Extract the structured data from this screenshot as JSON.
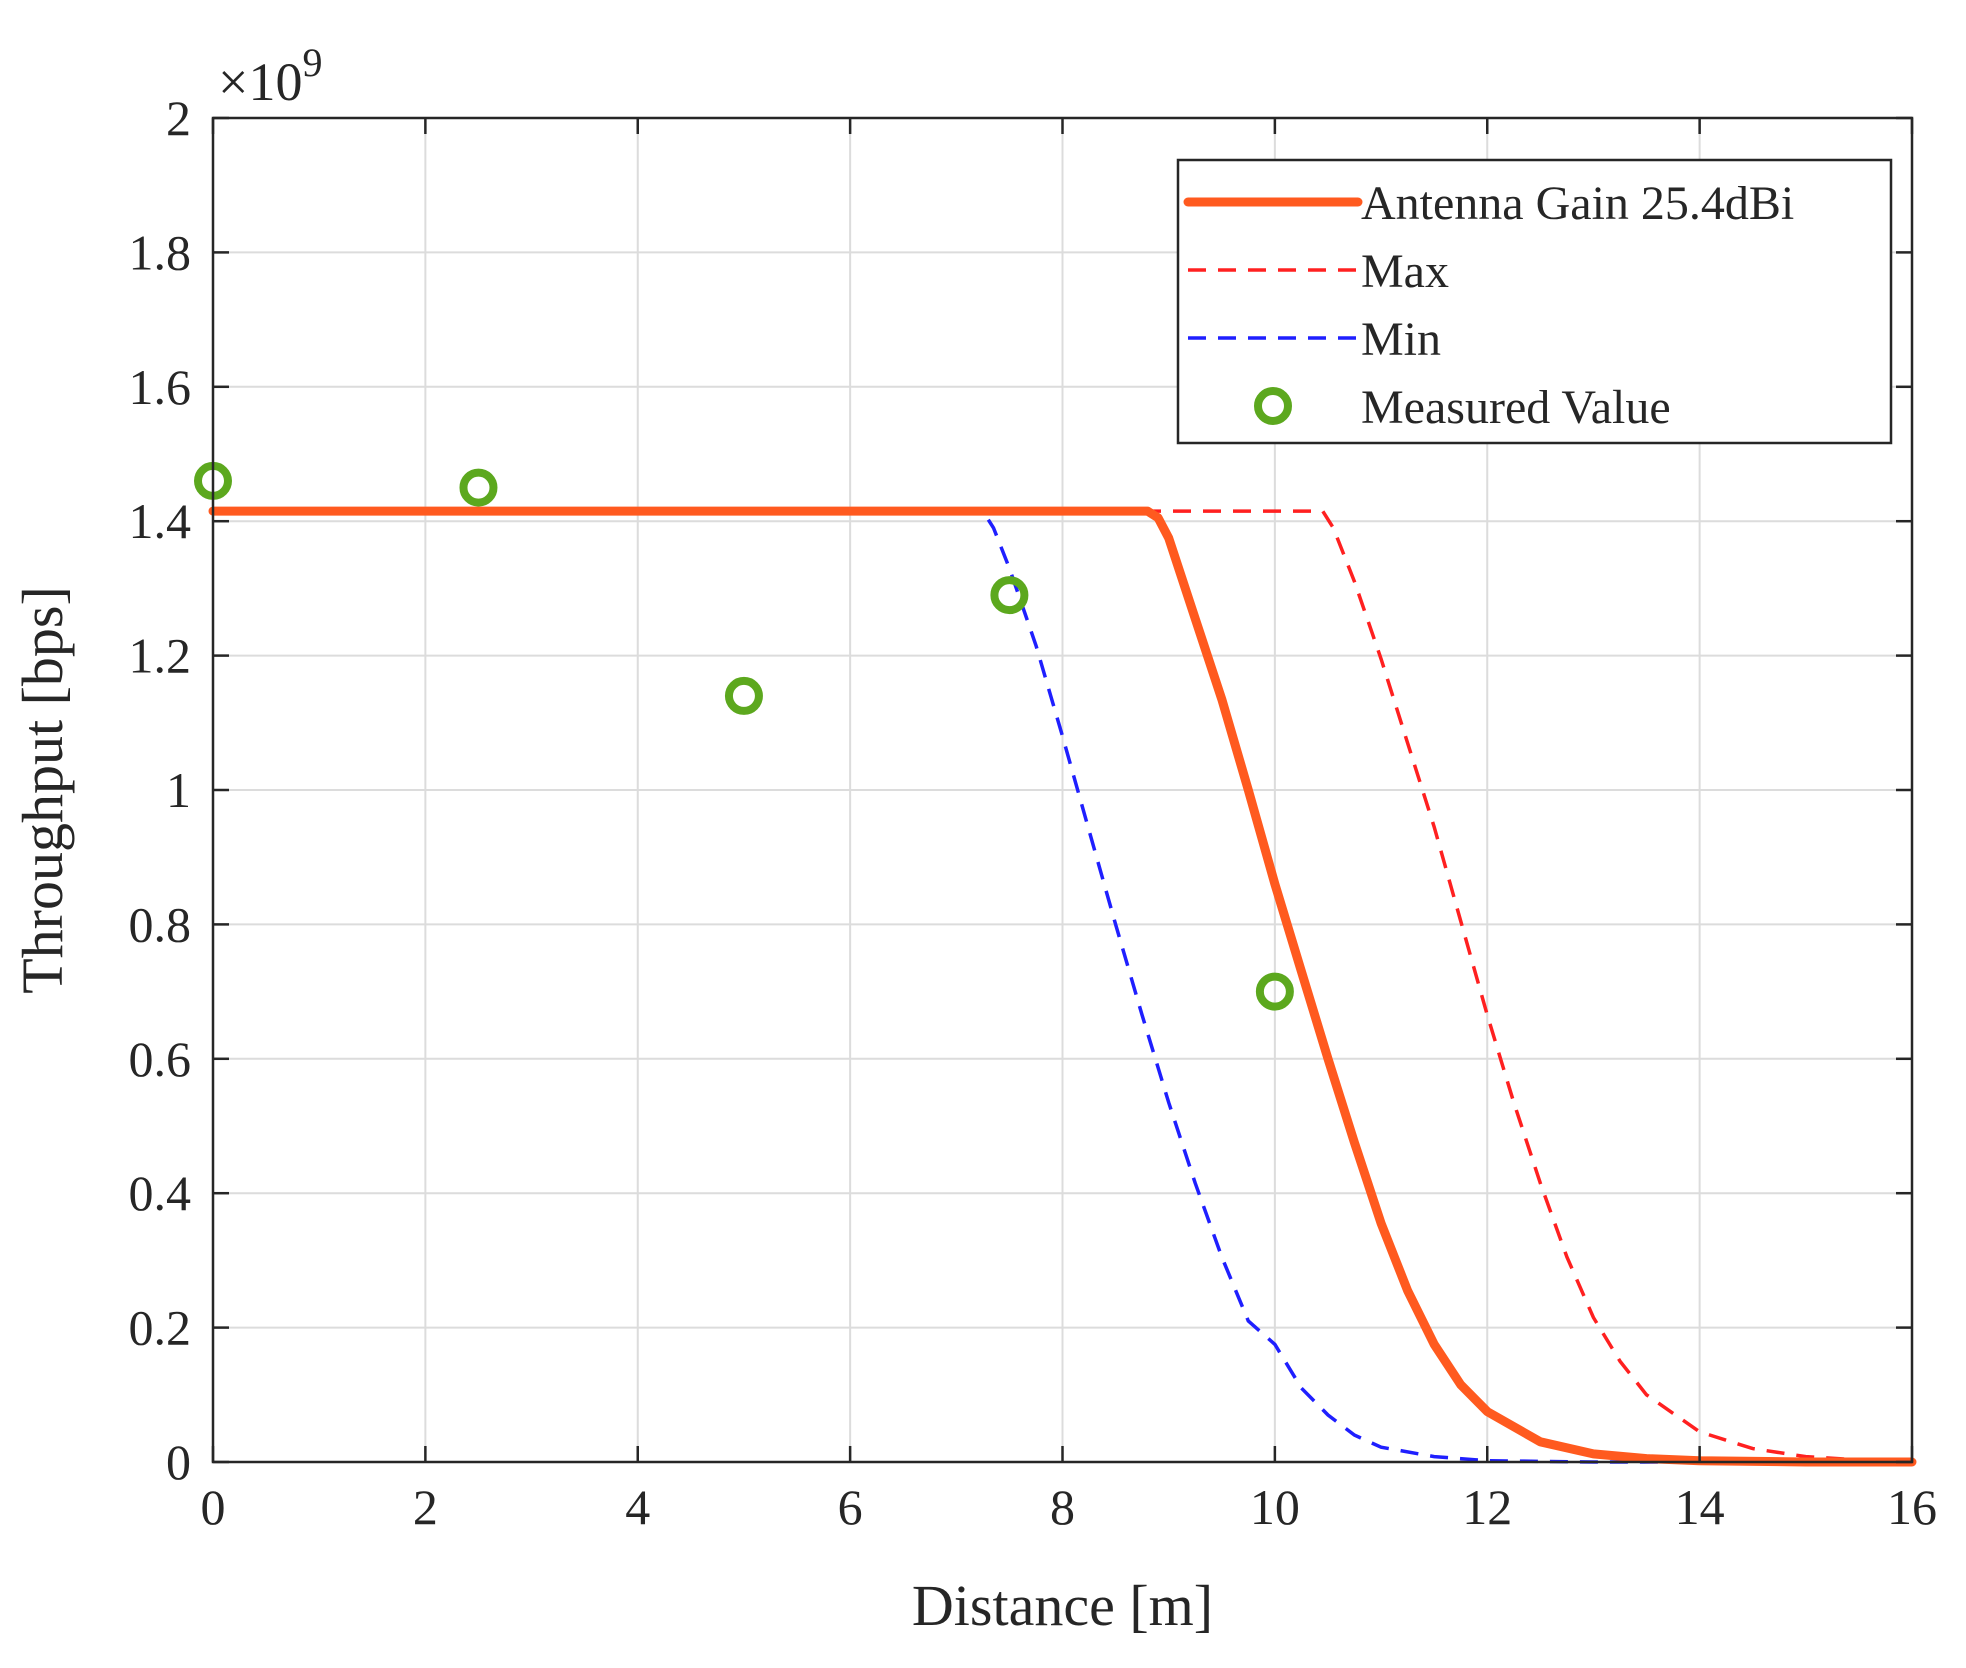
{
  "chart_data": {
    "type": "line",
    "title": "",
    "xlabel": "Distance [m]",
    "ylabel": "Throughput [bps]",
    "y_exponent_label": "×10",
    "y_exponent_power": "9",
    "xlim": [
      0,
      16
    ],
    "ylim": [
      0,
      2
    ],
    "x_ticks": [
      0,
      2,
      4,
      6,
      8,
      10,
      12,
      14,
      16
    ],
    "x_tick_labels": [
      "0",
      "2",
      "4",
      "6",
      "8",
      "10",
      "12",
      "14",
      "16"
    ],
    "y_ticks": [
      0,
      0.2,
      0.4,
      0.6,
      0.8,
      1.0,
      1.2,
      1.4,
      1.6,
      1.8,
      2.0
    ],
    "y_tick_labels": [
      "0",
      "0.2",
      "0.4",
      "0.6",
      "0.8",
      "1",
      "1.2",
      "1.4",
      "1.6",
      "1.8",
      "2"
    ],
    "grid": true,
    "legend_position": "top-right",
    "series": [
      {
        "name": "Antenna Gain 25.4dBi",
        "style": "solid",
        "color": "#ff5a1f",
        "x": [
          0,
          8.8,
          8.9,
          9.0,
          9.25,
          9.5,
          9.75,
          10.0,
          10.25,
          10.5,
          10.75,
          11.0,
          11.25,
          11.5,
          11.75,
          12.0,
          12.5,
          13.0,
          13.5,
          14.0,
          15.0,
          16.0
        ],
        "values": [
          1.415,
          1.415,
          1.405,
          1.375,
          1.255,
          1.135,
          1.0,
          0.86,
          0.73,
          0.6,
          0.475,
          0.355,
          0.255,
          0.175,
          0.115,
          0.075,
          0.03,
          0.012,
          0.005,
          0.002,
          0.0,
          0.0
        ]
      },
      {
        "name": "Max",
        "style": "dashed",
        "color": "#ff2020",
        "x": [
          0,
          10.45,
          10.55,
          10.75,
          11.0,
          11.25,
          11.5,
          11.75,
          12.0,
          12.25,
          12.5,
          12.75,
          13.0,
          13.25,
          13.5,
          14.0,
          14.5,
          15.0,
          15.5,
          16.0
        ],
        "values": [
          1.415,
          1.415,
          1.39,
          1.31,
          1.195,
          1.07,
          0.945,
          0.805,
          0.665,
          0.535,
          0.415,
          0.305,
          0.215,
          0.15,
          0.1,
          0.045,
          0.02,
          0.008,
          0.003,
          0.0
        ]
      },
      {
        "name": "Min",
        "style": "dashed",
        "color": "#1f1fff",
        "x": [
          0,
          7.25,
          7.35,
          7.5,
          7.75,
          8.0,
          8.25,
          8.5,
          8.75,
          9.0,
          9.25,
          9.5,
          9.75,
          10.0,
          10.25,
          10.5,
          10.75,
          11.0,
          11.5,
          12.0,
          13.0,
          16.0
        ],
        "values": [
          1.415,
          1.415,
          1.39,
          1.33,
          1.215,
          1.08,
          0.94,
          0.8,
          0.665,
          0.535,
          0.415,
          0.305,
          0.21,
          0.175,
          0.11,
          0.07,
          0.04,
          0.022,
          0.008,
          0.002,
          0.0,
          0.0
        ]
      },
      {
        "name": "Measured Value",
        "style": "markers",
        "marker": "circle",
        "color": "#5ca81e",
        "x": [
          0,
          2.5,
          5.0,
          7.5,
          10.0
        ],
        "values": [
          1.46,
          1.45,
          1.14,
          1.29,
          0.7
        ]
      }
    ]
  }
}
